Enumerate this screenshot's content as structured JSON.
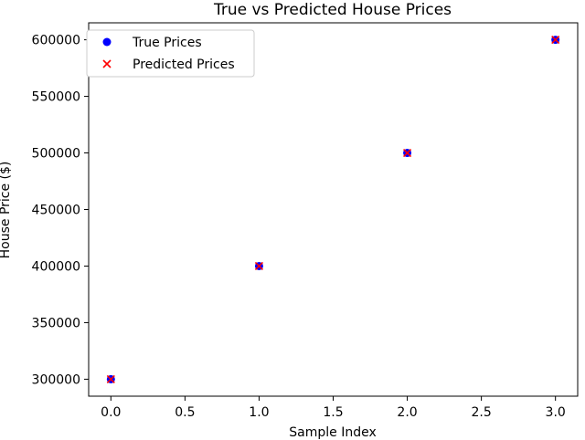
{
  "chart_data": {
    "type": "scatter",
    "title": "True vs Predicted House Prices",
    "xlabel": "Sample Index",
    "ylabel": "House Price ($)",
    "xlim": [
      -0.15,
      3.15
    ],
    "ylim": [
      285000,
      615000
    ],
    "xticks": [
      0.0,
      0.5,
      1.0,
      1.5,
      2.0,
      2.5,
      3.0
    ],
    "xtick_labels": [
      "0.0",
      "0.5",
      "1.0",
      "1.5",
      "2.0",
      "2.5",
      "3.0"
    ],
    "yticks": [
      300000,
      350000,
      400000,
      450000,
      500000,
      550000,
      600000
    ],
    "ytick_labels": [
      "300000",
      "350000",
      "400000",
      "450000",
      "500000",
      "550000",
      "600000"
    ],
    "grid": false,
    "legend_position": "top-left",
    "series": [
      {
        "name": "True Prices",
        "marker": "circle",
        "color": "#0000ff",
        "x": [
          0,
          1,
          2,
          3
        ],
        "y": [
          300000,
          400000,
          500000,
          600000
        ]
      },
      {
        "name": "Predicted Prices",
        "marker": "x",
        "color": "#ff0000",
        "x": [
          0,
          1,
          2,
          3
        ],
        "y": [
          300000,
          400000,
          500000,
          600000
        ]
      }
    ]
  }
}
